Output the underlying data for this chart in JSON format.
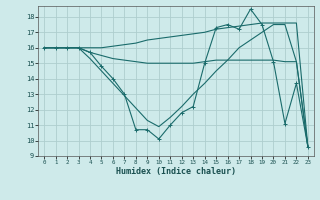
{
  "xlabel": "Humidex (Indice chaleur)",
  "bg_color": "#ceeaea",
  "grid_color": "#aecece",
  "line_color": "#1a6b6b",
  "xlim": [
    -0.5,
    23.5
  ],
  "ylim": [
    9,
    18.7
  ],
  "yticks": [
    9,
    10,
    11,
    12,
    13,
    14,
    15,
    16,
    17,
    18
  ],
  "xticks": [
    0,
    1,
    2,
    3,
    4,
    5,
    6,
    7,
    8,
    9,
    10,
    11,
    12,
    13,
    14,
    15,
    16,
    17,
    18,
    19,
    20,
    21,
    22,
    23
  ],
  "line1_x": [
    0,
    1,
    2,
    3,
    4,
    5,
    6,
    7,
    8,
    9,
    10,
    11,
    12,
    13,
    14,
    15,
    16,
    17,
    18,
    19,
    20,
    21,
    22,
    23
  ],
  "line1_y": [
    16,
    16,
    16,
    16,
    15.7,
    14.8,
    14.0,
    13.0,
    10.7,
    10.7,
    10.1,
    11.0,
    11.8,
    12.2,
    15.0,
    17.3,
    17.5,
    17.2,
    18.5,
    17.5,
    15.1,
    11.1,
    13.7,
    9.6
  ],
  "line2_x": [
    0,
    3,
    4,
    5,
    6,
    7,
    8,
    9,
    10,
    11,
    12,
    13,
    14,
    15,
    16,
    17,
    18,
    19,
    20,
    21,
    22,
    23
  ],
  "line2_y": [
    16,
    16,
    15.7,
    15.5,
    15.3,
    15.2,
    15.1,
    15.0,
    15.0,
    15.0,
    15.0,
    15.0,
    15.1,
    15.2,
    15.2,
    15.2,
    15.2,
    15.2,
    15.2,
    15.1,
    15.1,
    9.6
  ],
  "line3_x": [
    0,
    1,
    2,
    3,
    4,
    5,
    6,
    7,
    8,
    9,
    10,
    11,
    12,
    13,
    14,
    15,
    16,
    17,
    18,
    19,
    20,
    21,
    22,
    23
  ],
  "line3_y": [
    16,
    16,
    16,
    16,
    15.3,
    14.5,
    13.7,
    12.9,
    12.1,
    11.3,
    10.9,
    11.5,
    12.2,
    13.0,
    13.7,
    14.5,
    15.2,
    16.0,
    16.5,
    17.0,
    17.5,
    17.5,
    15.1,
    9.6
  ],
  "line4_x": [
    0,
    1,
    2,
    3,
    4,
    5,
    6,
    7,
    8,
    9,
    10,
    11,
    12,
    13,
    14,
    15,
    16,
    17,
    18,
    19,
    20,
    21,
    22,
    23
  ],
  "line4_y": [
    16,
    16,
    16,
    16,
    16.0,
    16.0,
    16.1,
    16.2,
    16.3,
    16.5,
    16.6,
    16.7,
    16.8,
    16.9,
    17.0,
    17.2,
    17.3,
    17.4,
    17.5,
    17.6,
    17.6,
    17.6,
    17.6,
    9.6
  ]
}
